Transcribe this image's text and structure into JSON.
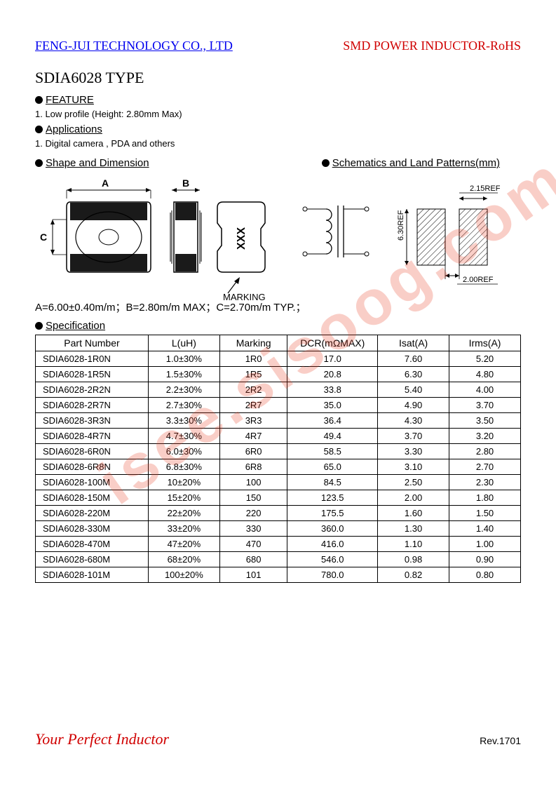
{
  "header": {
    "company": "FENG-JUI TECHNOLOGY CO., LTD",
    "product": "SMD POWER INDUCTOR-RoHS"
  },
  "title": "SDIA6028 TYPE",
  "sections": {
    "feature_label": "FEATURE",
    "feature_item": "1.    Low profile (Height: 2.80mm Max)",
    "applications_label": "Applications",
    "applications_item": "1.    Digital camera , PDA and others",
    "shape_label": "Shape and Dimension",
    "schematic_label": "Schematics and Land Patterns(mm)",
    "specification_label": "Specification"
  },
  "shape_diagram": {
    "dim_a": "A",
    "dim_b": "B",
    "dim_c": "C",
    "marking_text": "XXX",
    "marking_label": "MARKING"
  },
  "schematic": {
    "ref1": "2.15REF",
    "ref2": "6.30REF",
    "ref3": "2.00REF"
  },
  "dimensions_text": "A=6.00±0.40m/m；B=2.80m/m MAX；C=2.70m/m TYP.；",
  "spec_table": {
    "columns": [
      "Part Number",
      "L(uH)",
      "Marking",
      "DCR(mΩMAX)",
      "Isat(A)",
      "Irms(A)"
    ],
    "col_widths": [
      "150px",
      "95px",
      "90px",
      "120px",
      "95px",
      "95px"
    ],
    "rows": [
      [
        "SDIA6028-1R0N",
        "1.0±30%",
        "1R0",
        "17.0",
        "7.60",
        "5.20"
      ],
      [
        "SDIA6028-1R5N",
        "1.5±30%",
        "1R5",
        "20.8",
        "6.30",
        "4.80"
      ],
      [
        "SDIA6028-2R2N",
        "2.2±30%",
        "2R2",
        "33.8",
        "5.40",
        "4.00"
      ],
      [
        "SDIA6028-2R7N",
        "2.7±30%",
        "2R7",
        "35.0",
        "4.90",
        "3.70"
      ],
      [
        "SDIA6028-3R3N",
        "3.3±30%",
        "3R3",
        "36.4",
        "4.30",
        "3.50"
      ],
      [
        "SDIA6028-4R7N",
        "4.7±30%",
        "4R7",
        "49.4",
        "3.70",
        "3.20"
      ],
      [
        "SDIA6028-6R0N",
        "6.0±30%",
        "6R0",
        "58.5",
        "3.30",
        "2.80"
      ],
      [
        "SDIA6028-6R8N",
        "6.8±30%",
        "6R8",
        "65.0",
        "3.10",
        "2.70"
      ],
      [
        "SDIA6028-100M",
        "10±20%",
        "100",
        "84.5",
        "2.50",
        "2.30"
      ],
      [
        "SDIA6028-150M",
        "15±20%",
        "150",
        "123.5",
        "2.00",
        "1.80"
      ],
      [
        "SDIA6028-220M",
        "22±20%",
        "220",
        "175.5",
        "1.60",
        "1.50"
      ],
      [
        "SDIA6028-330M",
        "33±20%",
        "330",
        "360.0",
        "1.30",
        "1.40"
      ],
      [
        "SDIA6028-470M",
        "47±20%",
        "470",
        "416.0",
        "1.10",
        "1.00"
      ],
      [
        "SDIA6028-680M",
        "68±20%",
        "680",
        "546.0",
        "0.98",
        "0.90"
      ],
      [
        "SDIA6028-101M",
        "100±20%",
        "101",
        "780.0",
        "0.82",
        "0.80"
      ]
    ]
  },
  "footer": {
    "tagline": "Your Perfect Inductor",
    "rev": "Rev.1701"
  },
  "watermark": "isee.sisoog.com",
  "colors": {
    "link_blue": "#0000ee",
    "brand_red": "#d00000",
    "black": "#000000",
    "watermark": "rgba(230,60,30,0.25)"
  }
}
